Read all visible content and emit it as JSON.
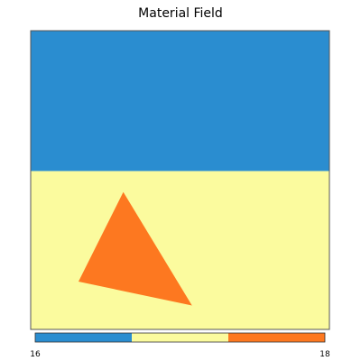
{
  "chart_data": {
    "type": "heatmap",
    "title": "Material Field",
    "regions": [
      {
        "material": 17,
        "shape": "rect",
        "x": [
          0,
          1
        ],
        "y": [
          0,
          0.47
        ]
      },
      {
        "material": 16,
        "shape": "rect",
        "x": [
          0,
          1
        ],
        "y": [
          0.47,
          1
        ]
      },
      {
        "material": 18,
        "shape": "triangle",
        "vertices": [
          [
            0.31,
            0.54
          ],
          [
            0.16,
            0.84
          ],
          [
            0.54,
            0.92
          ]
        ]
      }
    ],
    "colorbar": {
      "min": 16,
      "max": 18,
      "tick_labels": [
        "16",
        "18"
      ],
      "colors": [
        "#2a8dd0",
        "#fbfb9e",
        "#fd7820"
      ]
    },
    "colors": {
      "16": "#fbfb9e",
      "17": "#2a8dd0",
      "18": "#fd7820"
    }
  }
}
